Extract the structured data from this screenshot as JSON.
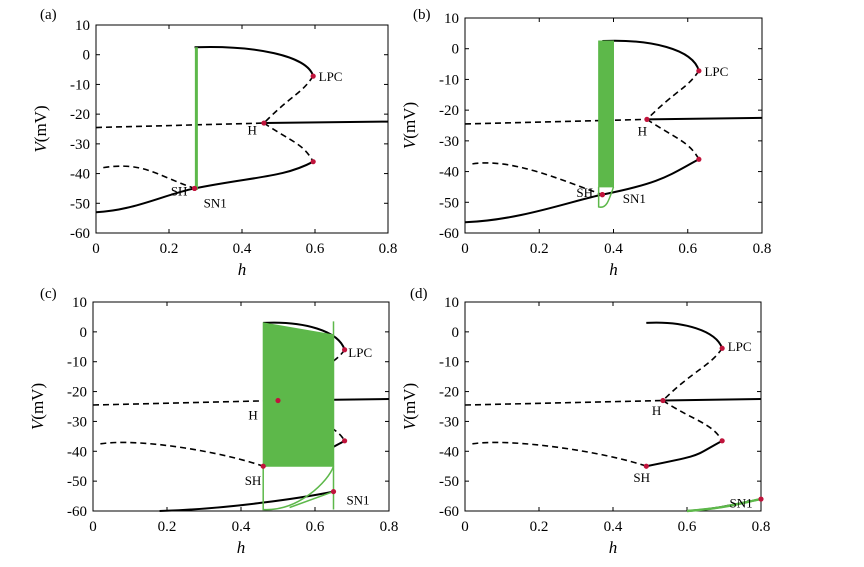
{
  "chart_data": [
    {
      "panel_label": "(a)",
      "type": "line",
      "xlabel": "h",
      "ylabel": "V(mV)",
      "xlim": [
        0,
        0.8
      ],
      "ylim": [
        -60,
        10
      ],
      "xticks": [
        "0",
        "0.2",
        "0.4",
        "0.6",
        "0.8"
      ],
      "yticks": [
        "10",
        "0",
        "-10",
        "-20",
        "-30",
        "-40",
        "-50",
        "-60"
      ],
      "bifurcation": {
        "LPC": [
          0.595,
          -7.2
        ],
        "H": [
          0.46,
          -23
        ],
        "SN": [
          0.595,
          -36
        ],
        "SH": [
          0.27,
          -45
        ],
        "SN1": [
          0.27,
          -45
        ],
        "stable_upper": [
          0.27,
          2.5
        ],
        "stable_lower_start": [
          0,
          -53
        ],
        "stable_right_end": [
          0.8,
          -22.5
        ],
        "unstable_left": [
          0.02,
          -38
        ]
      },
      "green_band": {
        "x_left": 0.275,
        "x_right": 0.275,
        "top": 2.5,
        "bottom": -45.5,
        "loop_bottom": -45.5
      },
      "labels": {
        "LPC": "LPC",
        "H": "H",
        "SH": "SH",
        "SN1": "SN1"
      },
      "label_pos": {
        "LPC": [
          0.61,
          -7.5
        ],
        "H": [
          0.415,
          -25.5
        ],
        "SH": [
          0.205,
          -46
        ],
        "SN1": [
          0.295,
          -50
        ]
      }
    },
    {
      "panel_label": "(b)",
      "type": "line",
      "xlabel": "h",
      "ylabel": "V(mV)",
      "xlim": [
        0,
        0.8
      ],
      "ylim": [
        -60,
        10
      ],
      "xticks": [
        "0",
        "0.2",
        "0.4",
        "0.6",
        "0.8"
      ],
      "yticks": [
        "10",
        "0",
        "-10",
        "-20",
        "-30",
        "-40",
        "-50",
        "-60"
      ],
      "bifurcation": {
        "LPC": [
          0.63,
          -7.2
        ],
        "H": [
          0.49,
          -23
        ],
        "SN": [
          0.63,
          -36
        ],
        "SH": [
          0.37,
          -47.5
        ],
        "SN1": [
          0.37,
          -47.5
        ],
        "stable_upper": [
          0.37,
          2.5
        ],
        "stable_lower_start": [
          0,
          -56.5
        ],
        "stable_right_end": [
          0.8,
          -22.5
        ],
        "unstable_left": [
          0.02,
          -37.5
        ]
      },
      "green_band": {
        "x_left": 0.36,
        "x_right": 0.4,
        "top": 2.5,
        "bottom": -45,
        "loop_bottom": -51.5
      },
      "labels": {
        "LPC": "LPC",
        "H": "H",
        "SH": "SH",
        "SN1": "SN1"
      },
      "label_pos": {
        "LPC": [
          0.645,
          -7.5
        ],
        "H": [
          0.465,
          -27
        ],
        "SH": [
          0.3,
          -47
        ],
        "SN1": [
          0.425,
          -49
        ]
      }
    },
    {
      "panel_label": "(c)",
      "type": "line",
      "xlabel": "h",
      "ylabel": "V(mV)",
      "xlim": [
        0,
        0.8
      ],
      "ylim": [
        -60,
        10
      ],
      "xticks": [
        "0",
        "0.2",
        "0.4",
        "0.6",
        "0.8"
      ],
      "yticks": [
        "10",
        "0",
        "-10",
        "-20",
        "-30",
        "-40",
        "-50",
        "-60"
      ],
      "bifurcation": {
        "LPC": [
          0.68,
          -6
        ],
        "H": [
          0.5,
          -23
        ],
        "SN": [
          0.68,
          -36.5
        ],
        "SH": [
          0.46,
          -45
        ],
        "SN1": [
          0.65,
          -53.5
        ],
        "stable_upper": [
          0.46,
          3
        ],
        "stable_lower_start": [
          0.18,
          -60
        ],
        "stable_right_end": [
          0.8,
          -22.5
        ],
        "unstable_left": [
          0.02,
          -37.5
        ]
      },
      "green_band": {
        "x_left": 0.46,
        "x_right": 0.65,
        "top": 3,
        "bottom": -45,
        "loop_bottom": -59.5
      },
      "labels": {
        "LPC": "LPC",
        "H": "H",
        "SH": "SH",
        "SN1": "SN1"
      },
      "label_pos": {
        "LPC": [
          0.69,
          -7
        ],
        "H": [
          0.42,
          -28
        ],
        "SH": [
          0.41,
          -50
        ],
        "SN1": [
          0.685,
          -56.5
        ]
      }
    },
    {
      "panel_label": "(d)",
      "type": "line",
      "xlabel": "h",
      "ylabel": "V(mV)",
      "xlim": [
        0,
        0.8
      ],
      "ylim": [
        -60,
        10
      ],
      "xticks": [
        "0",
        "0.2",
        "0.4",
        "0.6",
        "0.8"
      ],
      "yticks": [
        "10",
        "0",
        "-10",
        "-20",
        "-30",
        "-40",
        "-50",
        "-60"
      ],
      "bifurcation": {
        "LPC": [
          0.695,
          -5.5
        ],
        "H": [
          0.535,
          -23
        ],
        "SN": [
          0.695,
          -36.5
        ],
        "SH": [
          0.49,
          -45
        ],
        "SN1": [
          0.8,
          -56
        ],
        "stable_upper": [
          0.49,
          3
        ],
        "stable_lower_start": [
          0.6,
          -60
        ],
        "stable_right_end": [
          0.8,
          -22.5
        ],
        "unstable_left": [
          0.02,
          -37.5
        ]
      },
      "green_band": null,
      "green_lower": {
        "from": [
          0.6,
          -60
        ],
        "to": [
          0.8,
          -56
        ]
      },
      "labels": {
        "LPC": "LPC",
        "H": "H",
        "SH": "SH",
        "SN1": "SN1"
      },
      "label_pos": {
        "LPC": [
          0.71,
          -5
        ],
        "H": [
          0.505,
          -26.5
        ],
        "SH": [
          0.455,
          -49
        ],
        "SN1": [
          0.715,
          -57.5
        ]
      }
    }
  ],
  "colors": {
    "curve": "#000000",
    "oscillation": "#5db84a",
    "point": "#c0143c"
  }
}
